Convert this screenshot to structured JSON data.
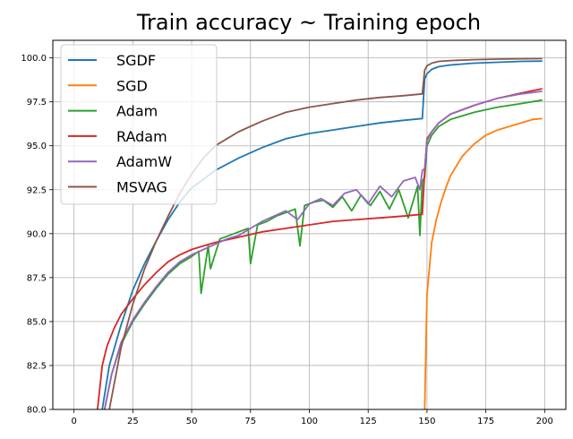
{
  "chart_data": {
    "type": "line",
    "title": "Train accuracy ~ Training epoch",
    "xlabel": "",
    "ylabel": "",
    "xlim": [
      -9,
      209
    ],
    "ylim": [
      80,
      101
    ],
    "xticks": [
      0,
      25,
      50,
      75,
      100,
      125,
      150,
      175,
      200
    ],
    "xtick_labels": [
      "0",
      "25",
      "50",
      "75",
      "100",
      "125",
      "150",
      "175",
      "200"
    ],
    "yticks": [
      80,
      82.5,
      85,
      87.5,
      90,
      92.5,
      95,
      97.5,
      100
    ],
    "ytick_labels": [
      "80.0",
      "82.5",
      "85.0",
      "87.5",
      "90.0",
      "92.5",
      "95.0",
      "97.5",
      "100.0"
    ],
    "grid": true,
    "legend_position": "top-left",
    "series": [
      {
        "name": "SGDF",
        "color": "#1f77b4",
        "x": [
          12,
          15,
          20,
          25,
          30,
          35,
          40,
          45,
          50,
          60,
          70,
          80,
          90,
          100,
          110,
          120,
          130,
          140,
          148,
          149,
          150,
          152,
          155,
          160,
          170,
          180,
          190,
          199
        ],
        "y": [
          80,
          82.5,
          84.8,
          86.8,
          88.3,
          89.6,
          90.8,
          91.8,
          92.6,
          93.6,
          94.3,
          94.9,
          95.4,
          95.7,
          95.9,
          96.1,
          96.3,
          96.45,
          96.55,
          98.8,
          99.1,
          99.35,
          99.5,
          99.6,
          99.7,
          99.75,
          99.8,
          99.82
        ]
      },
      {
        "name": "SGD",
        "color": "#ff7f0e",
        "x": [
          149,
          150,
          152,
          154,
          156,
          158,
          160,
          165,
          170,
          175,
          180,
          185,
          190,
          195,
          199
        ],
        "y": [
          80,
          86.5,
          89.5,
          90.8,
          91.8,
          92.6,
          93.3,
          94.4,
          95.1,
          95.6,
          95.9,
          96.1,
          96.3,
          96.5,
          96.55
        ]
      },
      {
        "name": "Adam",
        "color": "#2ca02c",
        "x": [
          13,
          16,
          20,
          25,
          30,
          35,
          40,
          45,
          50,
          53,
          54,
          57,
          58,
          62,
          66,
          70,
          74,
          75,
          78,
          82,
          86,
          90,
          94,
          96,
          98,
          102,
          106,
          110,
          114,
          118,
          122,
          126,
          130,
          134,
          138,
          142,
          146,
          147,
          148,
          149,
          150,
          152,
          155,
          160,
          170,
          180,
          190,
          199
        ],
        "y": [
          80,
          82,
          83.7,
          85.0,
          86.0,
          86.9,
          87.7,
          88.3,
          88.7,
          89.0,
          86.6,
          89.3,
          88.0,
          89.7,
          89.9,
          90.1,
          90.3,
          88.3,
          90.5,
          90.7,
          91.0,
          91.2,
          91.4,
          89.3,
          91.6,
          91.8,
          91.9,
          91.5,
          92.1,
          91.3,
          92.2,
          91.6,
          92.4,
          91.4,
          92.5,
          90.9,
          92.7,
          89.9,
          93.0,
          93.2,
          95.0,
          95.6,
          96.1,
          96.5,
          96.9,
          97.2,
          97.4,
          97.6
        ]
      },
      {
        "name": "RAdam",
        "color": "#d62728",
        "x": [
          10,
          12,
          14,
          17,
          20,
          25,
          30,
          35,
          40,
          45,
          50,
          55,
          60,
          70,
          80,
          90,
          100,
          110,
          120,
          130,
          140,
          148,
          149,
          150,
          152,
          155,
          160,
          170,
          180,
          190,
          199
        ],
        "y": [
          80,
          82.5,
          83.6,
          84.6,
          85.4,
          86.3,
          87.1,
          87.8,
          88.4,
          88.8,
          89.1,
          89.3,
          89.5,
          89.8,
          90.1,
          90.3,
          90.5,
          90.7,
          90.8,
          90.9,
          91.0,
          91.1,
          93.5,
          95.4,
          95.8,
          96.3,
          96.8,
          97.3,
          97.7,
          98.0,
          98.25
        ]
      },
      {
        "name": "AdamW",
        "color": "#9467bd",
        "x": [
          13,
          16,
          20,
          25,
          30,
          35,
          40,
          45,
          50,
          55,
          60,
          65,
          70,
          75,
          80,
          85,
          90,
          95,
          100,
          105,
          110,
          115,
          120,
          125,
          130,
          135,
          140,
          145,
          147,
          148,
          149,
          150,
          152,
          155,
          160,
          170,
          180,
          190,
          199
        ],
        "y": [
          80,
          82,
          83.8,
          85.1,
          86.1,
          87.0,
          87.8,
          88.4,
          88.8,
          89.1,
          89.4,
          89.7,
          89.9,
          90.3,
          90.7,
          91.0,
          91.3,
          90.8,
          91.7,
          92.0,
          91.6,
          92.3,
          92.5,
          91.7,
          92.7,
          92.1,
          93.0,
          93.2,
          92.5,
          93.6,
          93.7,
          95.3,
          95.8,
          96.3,
          96.8,
          97.3,
          97.7,
          97.95,
          98.1
        ]
      },
      {
        "name": "MSVAG",
        "color": "#8c564b",
        "x": [
          15,
          20,
          25,
          30,
          35,
          40,
          45,
          50,
          55,
          60,
          70,
          80,
          90,
          100,
          110,
          120,
          130,
          140,
          148,
          149,
          150,
          152,
          155,
          160,
          170,
          180,
          190,
          199
        ],
        "y": [
          80,
          83.5,
          86.0,
          88.0,
          89.6,
          91.0,
          92.3,
          93.4,
          94.3,
          95.0,
          95.8,
          96.4,
          96.9,
          97.2,
          97.4,
          97.6,
          97.75,
          97.85,
          97.95,
          99.3,
          99.55,
          99.7,
          99.8,
          99.85,
          99.9,
          99.93,
          99.95,
          99.96
        ]
      }
    ]
  }
}
